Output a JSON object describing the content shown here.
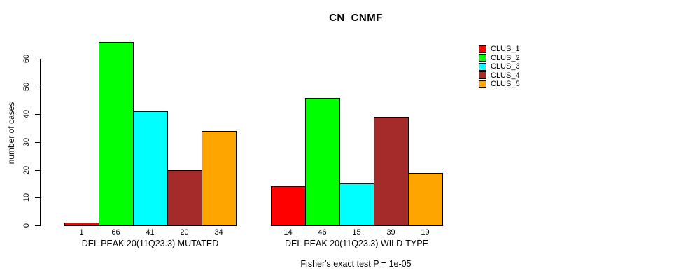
{
  "chart_data": {
    "type": "bar",
    "title": "CN_CNMF",
    "ylabel": "number of cases",
    "xlabel": "",
    "annotation": "Fisher's exact test P = 1e-05",
    "categories": [
      "DEL PEAK 20(11Q23.3) MUTATED",
      "DEL PEAK 20(11Q23.3) WILD-TYPE"
    ],
    "series": [
      {
        "name": "CLUS_1",
        "color": "#FF0000",
        "values": [
          1,
          14
        ]
      },
      {
        "name": "CLUS_2",
        "color": "#00FF00",
        "values": [
          66,
          46
        ]
      },
      {
        "name": "CLUS_3",
        "color": "#00FFFF",
        "values": [
          41,
          15
        ]
      },
      {
        "name": "CLUS_4",
        "color": "#A52A2A",
        "values": [
          20,
          39
        ]
      },
      {
        "name": "CLUS_5",
        "color": "#FFA500",
        "values": [
          34,
          19
        ]
      }
    ],
    "yticks": [
      0,
      10,
      20,
      30,
      40,
      50,
      60
    ],
    "ylim": [
      0,
      66
    ],
    "grid": false,
    "legend_position": "right",
    "bar_value_labels_shown": true,
    "bar_border_color": "#000000",
    "background_color": "#FFFFFF"
  }
}
